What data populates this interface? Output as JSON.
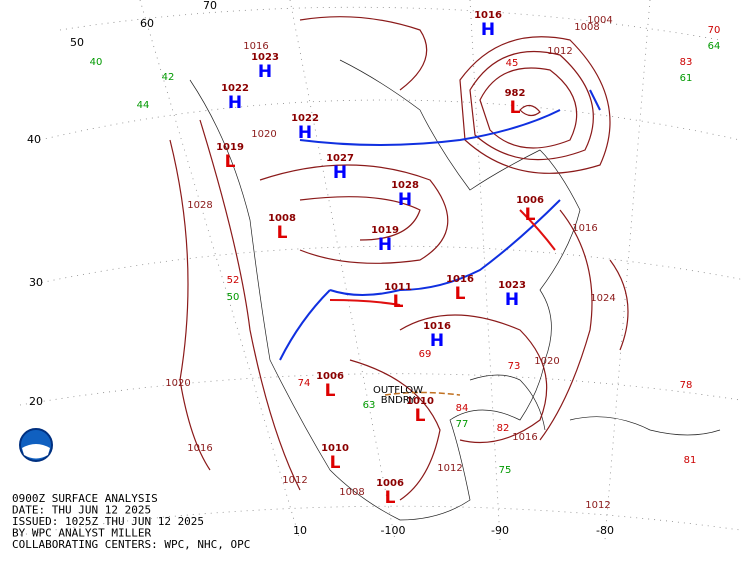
{
  "map": {
    "latitude_labels": [
      "70",
      "60",
      "50",
      "40",
      "30",
      "20",
      "10"
    ],
    "longitude_labels": [
      "-100",
      "-90",
      "-80"
    ],
    "pressure_centers": [
      {
        "symbol": "L",
        "value": "982"
      },
      {
        "symbol": "H",
        "value": "1023"
      },
      {
        "symbol": "H",
        "value": "1022"
      },
      {
        "symbol": "H",
        "value": "1027"
      },
      {
        "symbol": "H",
        "value": "1028"
      },
      {
        "symbol": "H",
        "value": "1019"
      },
      {
        "symbol": "L",
        "value": "1019"
      },
      {
        "symbol": "L",
        "value": "1008"
      },
      {
        "symbol": "L",
        "value": "1006"
      },
      {
        "symbol": "H",
        "value": "1023"
      },
      {
        "symbol": "L",
        "value": "1011"
      },
      {
        "symbol": "L",
        "value": "1016"
      },
      {
        "symbol": "H",
        "value": "1016"
      },
      {
        "symbol": "L",
        "value": "1006"
      },
      {
        "symbol": "L",
        "value": "1010"
      },
      {
        "symbol": "L",
        "value": "1010"
      },
      {
        "symbol": "L",
        "value": "1006"
      },
      {
        "symbol": "H",
        "value": "1016"
      },
      {
        "symbol": "H",
        "value": "1022"
      }
    ],
    "isobar_labels": [
      "1028",
      "1020",
      "1016",
      "1012",
      "1012",
      "1016",
      "1020",
      "1024",
      "1016",
      "1012",
      "1004",
      "1008",
      "1012",
      "1008",
      "1016",
      "1020"
    ],
    "station_values": [
      "70",
      "64",
      "83",
      "61",
      "52",
      "50",
      "74",
      "63",
      "77",
      "84",
      "73",
      "82",
      "78",
      "81",
      "75",
      "40",
      "44",
      "42",
      "45",
      "69"
    ],
    "annotations": [
      "OUTFLOW",
      "BNDRY"
    ]
  },
  "footer": {
    "lines": [
      "0900Z SURFACE ANALYSIS",
      "DATE: THU JUN 12 2025",
      "ISSUED: 1025Z THU JUN 12 2025",
      "BY WPC ANALYST MILLER",
      "COLLABORATING CENTERS: WPC, NHC, OPC"
    ]
  }
}
